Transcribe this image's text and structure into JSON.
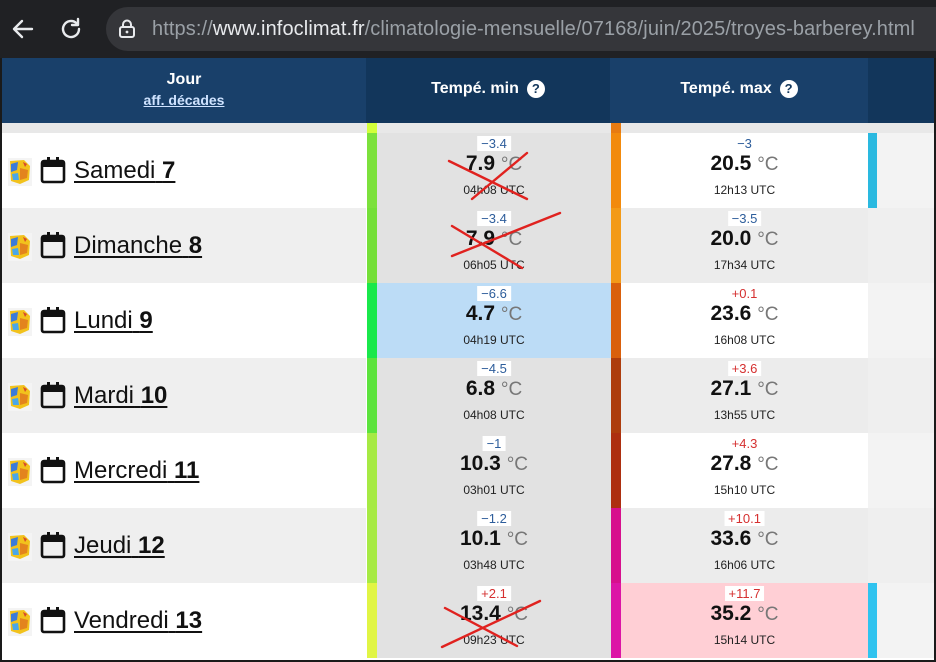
{
  "browser": {
    "url_prefix": "https://",
    "url_host": "www.infoclimat.fr",
    "url_path": "/climatologie-mensuelle/07168/juin/2025/troyes-barberey.html"
  },
  "table": {
    "headers": {
      "jour": "Jour",
      "jour_sub": "aff. décades",
      "min": "Tempé. min",
      "max": "Tempé. max",
      "help": "?"
    },
    "unit": "°C",
    "rows": [
      {
        "day": "Samedi",
        "num": "7",
        "min": {
          "anom": "−3.4",
          "value": "7.9",
          "time": "04h08 UTC"
        },
        "max": {
          "anom": "−3",
          "value": "20.5",
          "time": "12h13 UTC"
        }
      },
      {
        "day": "Dimanche",
        "num": "8",
        "min": {
          "anom": "−3.4",
          "value": "7.9",
          "time": "06h05 UTC"
        },
        "max": {
          "anom": "−3.5",
          "value": "20.0",
          "time": "17h34 UTC"
        }
      },
      {
        "day": "Lundi",
        "num": "9",
        "min": {
          "anom": "−6.6",
          "value": "4.7",
          "time": "04h19 UTC"
        },
        "max": {
          "anom": "+0.1",
          "value": "23.6",
          "time": "16h08 UTC"
        }
      },
      {
        "day": "Mardi",
        "num": "10",
        "min": {
          "anom": "−4.5",
          "value": "6.8",
          "time": "04h08 UTC"
        },
        "max": {
          "anom": "+3.6",
          "value": "27.1",
          "time": "13h55 UTC"
        }
      },
      {
        "day": "Mercredi",
        "num": "11",
        "min": {
          "anom": "−1",
          "value": "10.3",
          "time": "03h01 UTC"
        },
        "max": {
          "anom": "+4.3",
          "value": "27.8",
          "time": "15h10 UTC"
        }
      },
      {
        "day": "Jeudi",
        "num": "12",
        "min": {
          "anom": "−1.2",
          "value": "10.1",
          "time": "03h48 UTC"
        },
        "max": {
          "anom": "+10.1",
          "value": "33.6",
          "time": "16h06 UTC"
        }
      },
      {
        "day": "Vendredi",
        "num": "13",
        "min": {
          "anom": "+2.1",
          "value": "13.4",
          "time": "09h23 UTC"
        },
        "max": {
          "anom": "+11.7",
          "value": "35.2",
          "time": "15h14 UTC"
        }
      }
    ]
  },
  "colors": {
    "header_dark": "#12365b",
    "header": "#19406a",
    "negative_anomaly": "#2d5d9b",
    "positive_anomaly": "#d53030",
    "cross_out": "#e0221f",
    "min_highlight": "#bcdcf6",
    "max_highlight": "#ffcfd5"
  }
}
